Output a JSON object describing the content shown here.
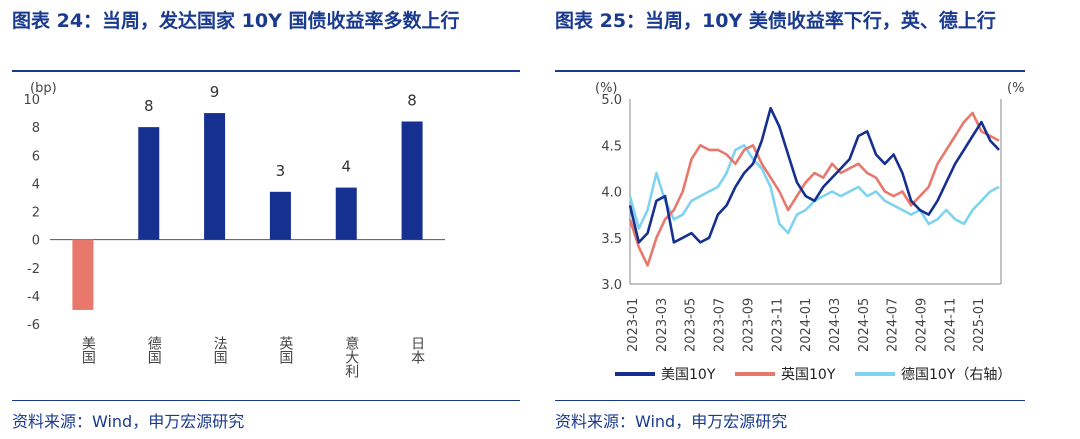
{
  "left": {
    "title": "图表 24：当周，发达国家 10Y 国债收益率多数上行",
    "source": "资料来源：Wind，申万宏源研究",
    "chart_data": {
      "type": "bar",
      "categories": [
        "美国",
        "德国",
        "法国",
        "英国",
        "意大利",
        "日本"
      ],
      "values": [
        -5,
        8,
        9,
        3.4,
        3.7,
        8.4
      ],
      "data_labels": [
        "",
        "8",
        "9",
        "3",
        "4",
        "8"
      ],
      "ylabel": "(bp)",
      "ylim": [
        -6,
        10
      ],
      "yticks": [
        -6,
        -4,
        -2,
        0,
        2,
        4,
        6,
        8,
        10
      ],
      "colors": {
        "positive": "#16308f",
        "negative": "#e8786b"
      }
    }
  },
  "right": {
    "title": "图表 25：当周，10Y 美债收益率下行，英、德上行",
    "source": "资料来源：Wind，申万宏源研究",
    "chart_data": {
      "type": "line",
      "ylabel_left": "(%)",
      "ylabel_right": "(%",
      "ylim": [
        3.0,
        5.0
      ],
      "yticks": [
        3.0,
        3.5,
        4.0,
        4.5,
        5.0
      ],
      "xtick_labels": [
        "2023-01",
        "2023-03",
        "2023-05",
        "2023-07",
        "2023-09",
        "2023-11",
        "2024-01",
        "2024-03",
        "2024-05",
        "2024-07",
        "2024-09",
        "2024-11",
        "2025-01"
      ],
      "series": [
        {
          "name": "美国10Y",
          "color": "#16308f",
          "values": [
            3.85,
            3.45,
            3.55,
            3.9,
            3.95,
            3.45,
            3.5,
            3.55,
            3.45,
            3.5,
            3.75,
            3.85,
            4.05,
            4.2,
            4.3,
            4.55,
            4.9,
            4.7,
            4.4,
            4.1,
            3.95,
            3.9,
            4.05,
            4.15,
            4.25,
            4.35,
            4.6,
            4.65,
            4.4,
            4.3,
            4.4,
            4.2,
            3.9,
            3.8,
            3.75,
            3.9,
            4.1,
            4.3,
            4.45,
            4.6,
            4.75,
            4.55,
            4.45
          ]
        },
        {
          "name": "英国10Y",
          "color": "#e8786b",
          "values": [
            3.7,
            3.4,
            3.2,
            3.5,
            3.7,
            3.8,
            4.0,
            4.35,
            4.5,
            4.45,
            4.45,
            4.4,
            4.3,
            4.45,
            4.5,
            4.3,
            4.15,
            4.0,
            3.8,
            3.95,
            4.1,
            4.2,
            4.15,
            4.3,
            4.2,
            4.25,
            4.3,
            4.2,
            4.15,
            4.0,
            3.95,
            4.0,
            3.85,
            3.95,
            4.05,
            4.3,
            4.45,
            4.6,
            4.75,
            4.85,
            4.65,
            4.6,
            4.55
          ]
        },
        {
          "name": "德国10Y（右轴）",
          "color": "#7fd3f0",
          "values": [
            3.95,
            3.6,
            3.8,
            4.2,
            3.9,
            3.7,
            3.75,
            3.9,
            3.95,
            4.0,
            4.05,
            4.2,
            4.45,
            4.5,
            4.35,
            4.25,
            4.05,
            3.65,
            3.55,
            3.75,
            3.8,
            3.9,
            3.95,
            4.0,
            3.95,
            4.0,
            4.05,
            3.95,
            4.0,
            3.9,
            3.85,
            3.8,
            3.75,
            3.8,
            3.65,
            3.7,
            3.8,
            3.7,
            3.65,
            3.8,
            3.9,
            4.0,
            4.05
          ]
        }
      ]
    }
  }
}
